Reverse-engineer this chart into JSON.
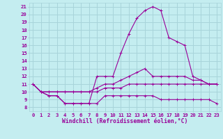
{
  "background_color": "#c4edf0",
  "grid_color": "#a8d4da",
  "line_color": "#990099",
  "marker": "+",
  "x_ticks": [
    0,
    1,
    2,
    3,
    4,
    5,
    6,
    7,
    8,
    9,
    10,
    11,
    12,
    13,
    14,
    15,
    16,
    17,
    18,
    19,
    20,
    21,
    22,
    23
  ],
  "y_ticks": [
    8,
    9,
    10,
    11,
    12,
    13,
    14,
    15,
    16,
    17,
    18,
    19,
    20,
    21
  ],
  "xlabel": "Windchill (Refroidissement éolien,°C)",
  "series": [
    [
      11,
      10,
      9.5,
      9.5,
      8.5,
      8.5,
      8.5,
      8.5,
      8.5,
      9.5,
      9.5,
      9.5,
      9.5,
      9.5,
      9.5,
      9.5,
      9.0,
      9.0,
      9.0,
      9.0,
      9.0,
      9.0,
      9.0,
      8.5
    ],
    [
      11,
      10,
      10,
      10,
      10,
      10,
      10,
      10,
      10,
      10.5,
      10.5,
      10.5,
      11,
      11,
      11,
      11,
      11,
      11,
      11,
      11,
      11,
      11,
      11,
      11
    ],
    [
      11,
      10,
      10,
      10,
      10,
      10,
      10,
      10,
      10.5,
      11,
      11,
      11.5,
      12,
      12.5,
      13,
      12,
      12,
      12,
      12,
      12,
      11.5,
      11.5,
      11,
      11
    ],
    [
      11,
      10,
      9.5,
      9.5,
      8.5,
      8.5,
      8.5,
      8.5,
      12,
      12,
      12,
      15,
      17.5,
      19.5,
      20.5,
      21,
      20.5,
      17,
      16.5,
      16,
      12,
      11.5,
      11,
      11
    ]
  ],
  "xlim": [
    -0.5,
    23.5
  ],
  "ylim": [
    7.5,
    21.5
  ],
  "tick_fontsize": 5.2,
  "xlabel_fontsize": 5.8
}
